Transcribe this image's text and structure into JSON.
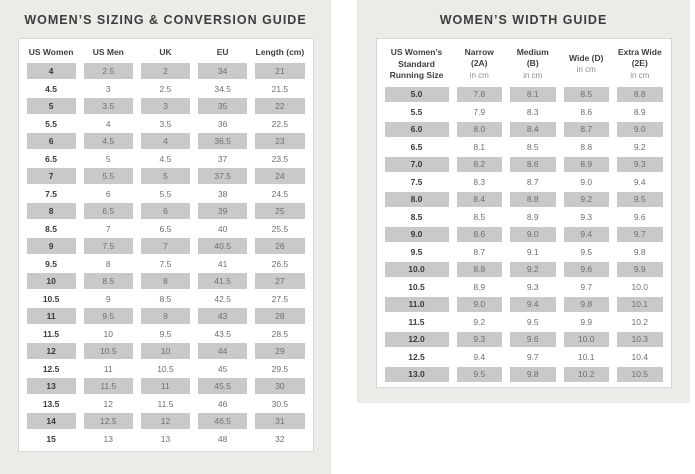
{
  "sizing_guide": {
    "title": "WOMEN’S SIZING & CONVERSION GUIDE",
    "headers": [
      "US Women",
      "US Men",
      "UK",
      "EU",
      "Length (cm)"
    ],
    "rows": [
      [
        "4",
        "2.5",
        "2",
        "34",
        "21"
      ],
      [
        "4.5",
        "3",
        "2.5",
        "34.5",
        "21.5"
      ],
      [
        "5",
        "3.5",
        "3",
        "35",
        "22"
      ],
      [
        "5.5",
        "4",
        "3.5",
        "36",
        "22.5"
      ],
      [
        "6",
        "4.5",
        "4",
        "36.5",
        "23"
      ],
      [
        "6.5",
        "5",
        "4.5",
        "37",
        "23.5"
      ],
      [
        "7",
        "5.5",
        "5",
        "37.5",
        "24"
      ],
      [
        "7.5",
        "6",
        "5.5",
        "38",
        "24.5"
      ],
      [
        "8",
        "6.5",
        "6",
        "39",
        "25"
      ],
      [
        "8.5",
        "7",
        "6.5",
        "40",
        "25.5"
      ],
      [
        "9",
        "7.5",
        "7",
        "40.5",
        "26"
      ],
      [
        "9.5",
        "8",
        "7.5",
        "41",
        "26.5"
      ],
      [
        "10",
        "8.5",
        "8",
        "41.5",
        "27"
      ],
      [
        "10.5",
        "9",
        "8.5",
        "42.5",
        "27.5"
      ],
      [
        "11",
        "9.5",
        "9",
        "43",
        "28"
      ],
      [
        "11.5",
        "10",
        "9.5",
        "43.5",
        "28.5"
      ],
      [
        "12",
        "10.5",
        "10",
        "44",
        "29"
      ],
      [
        "12.5",
        "11",
        "10.5",
        "45",
        "29.5"
      ],
      [
        "13",
        "11.5",
        "11",
        "45.5",
        "30"
      ],
      [
        "13.5",
        "12",
        "11.5",
        "46",
        "30.5"
      ],
      [
        "14",
        "12.5",
        "12",
        "46.5",
        "31"
      ],
      [
        "15",
        "13",
        "13",
        "48",
        "32"
      ]
    ]
  },
  "width_guide": {
    "title": "WOMEN’S WIDTH GUIDE",
    "headers": [
      {
        "label": "US Women’s Standard Running Size",
        "sub": ""
      },
      {
        "label": "Narrow (2A)",
        "sub": "in cm"
      },
      {
        "label": "Medium (B)",
        "sub": "in cm"
      },
      {
        "label": "Wide (D)",
        "sub": "in cm"
      },
      {
        "label": "Extra Wide (2E)",
        "sub": "in cm"
      }
    ],
    "rows": [
      [
        "5.0",
        "7.8",
        "8.1",
        "8.5",
        "8.8"
      ],
      [
        "5.5",
        "7.9",
        "8.3",
        "8.6",
        "8.9"
      ],
      [
        "6.0",
        "8.0",
        "8.4",
        "8.7",
        "9.0"
      ],
      [
        "6.5",
        "8.1",
        "8.5",
        "8.8",
        "9.2"
      ],
      [
        "7.0",
        "8.2",
        "8.6",
        "8.9",
        "9.3"
      ],
      [
        "7.5",
        "8.3",
        "8.7",
        "9.0",
        "9.4"
      ],
      [
        "8.0",
        "8.4",
        "8.8",
        "9.2",
        "9.5"
      ],
      [
        "8.5",
        "8.5",
        "8.9",
        "9.3",
        "9.6"
      ],
      [
        "9.0",
        "8.6",
        "9.0",
        "9.4",
        "9.7"
      ],
      [
        "9.5",
        "8.7",
        "9.1",
        "9.5",
        "9.8"
      ],
      [
        "10.0",
        "8.8",
        "9.2",
        "9.6",
        "9.9"
      ],
      [
        "10.5",
        "8.9",
        "9.3",
        "9.7",
        "10.0"
      ],
      [
        "11.0",
        "9.0",
        "9.4",
        "9.8",
        "10.1"
      ],
      [
        "11.5",
        "9.2",
        "9.5",
        "9.9",
        "10.2"
      ],
      [
        "12.0",
        "9.3",
        "9.6",
        "10.0",
        "10.3"
      ],
      [
        "12.5",
        "9.4",
        "9.7",
        "10.1",
        "10.4"
      ],
      [
        "13.0",
        "9.5",
        "9.8",
        "10.2",
        "10.5"
      ]
    ]
  },
  "colors": {
    "panel_bg": "#ecebe8",
    "card_bg": "#ffffff",
    "card_border": "#d9d7d4",
    "row_shade": "#c9c9c9",
    "heading_text": "#3d3d3d",
    "body_text": "#6f6f6f",
    "subheader_text": "#8e8e8e"
  }
}
